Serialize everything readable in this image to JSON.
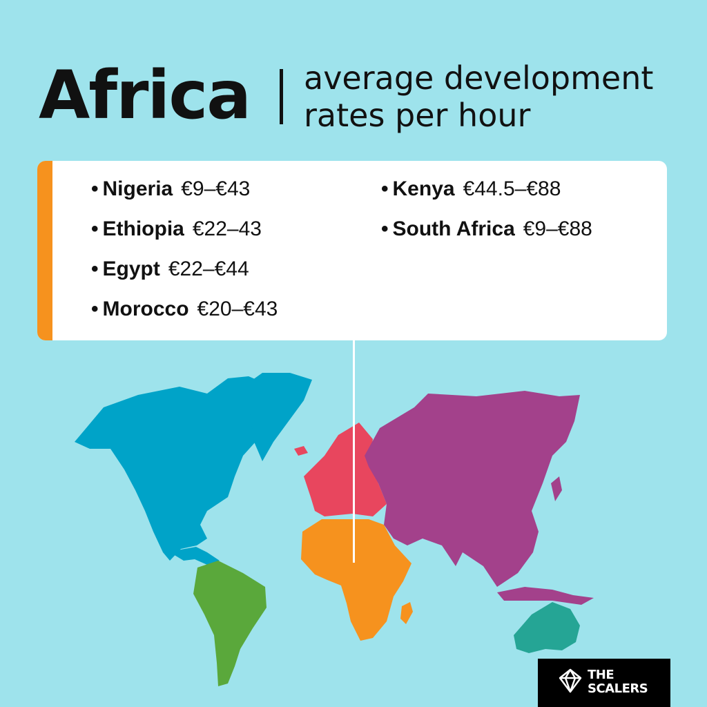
{
  "header": {
    "title": "Africa",
    "subtitle_line1": "average development",
    "subtitle_line2": "rates per hour"
  },
  "rates": [
    {
      "country": "Nigeria",
      "range": "€9–€43"
    },
    {
      "country": "Ethiopia",
      "range": "€22–43"
    },
    {
      "country": "Egypt",
      "range": "€22–€44"
    },
    {
      "country": "Morocco",
      "range": "€20–€43"
    },
    {
      "country": "Kenya",
      "range": "€44.5–€88"
    },
    {
      "country": "South Africa",
      "range": "€9–€88"
    }
  ],
  "bullet": "•",
  "map": {
    "colors": {
      "north_america": "#00a3c8",
      "south_america": "#5aa83b",
      "europe": "#e8465e",
      "africa": "#f6921e",
      "asia": "#a3418b",
      "oceania": "#25a595"
    },
    "highlight": "africa"
  },
  "logo": {
    "line1": "THE",
    "line2": "SCALERS",
    "icon": "scalers-diamond-icon"
  }
}
